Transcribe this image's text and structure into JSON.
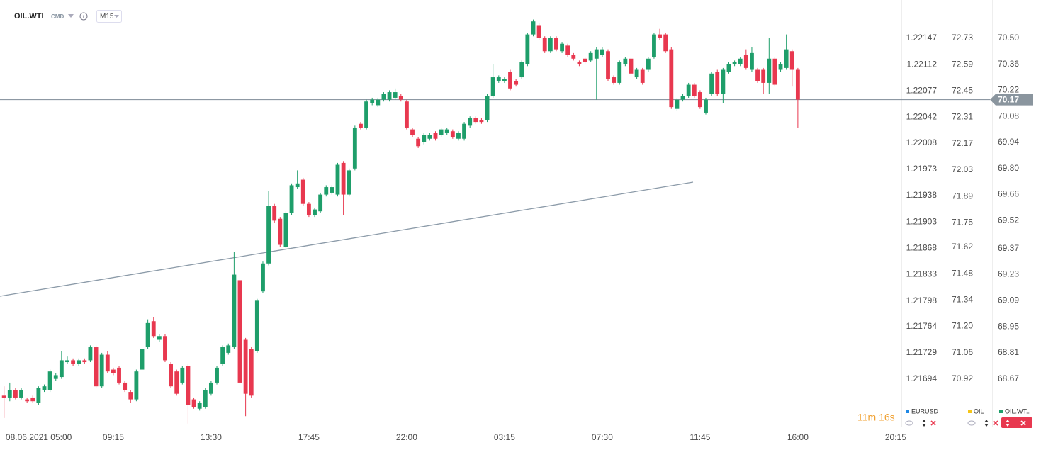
{
  "chart_data": {
    "type": "candlestick",
    "symbol": "OIL.WTI",
    "market": "CMD",
    "interval": "M15",
    "countdown": "11m 16s",
    "up_color": "#1e9e6a",
    "down_color": "#e8384f",
    "open": [
      68.58,
      68.57,
      68.61,
      68.57,
      68.56,
      68.57,
      68.54,
      68.61,
      68.61,
      68.67,
      68.68,
      68.76,
      68.77,
      68.75,
      68.77,
      68.77,
      68.84,
      68.63,
      68.8,
      68.72,
      68.73,
      68.65,
      68.6,
      68.56,
      68.72,
      68.84,
      68.98,
      68.88,
      68.9,
      68.75,
      68.71,
      68.65,
      68.74,
      68.56,
      68.51,
      68.52,
      68.59,
      68.65,
      68.75,
      68.81,
      68.84,
      69.2,
      68.88,
      68.83,
      68.82,
      69.14,
      69.29,
      69.6,
      69.53,
      69.38,
      69.56,
      69.7,
      69.74,
      69.61,
      69.55,
      69.57,
      69.66,
      69.67,
      69.66,
      69.83,
      69.66,
      69.8,
      70.04,
      70.02,
      70.15,
      70.14,
      70.17,
      70.17,
      70.18,
      70.19,
      70.16,
      70.01,
      69.96,
      69.94,
      69.96,
      69.99,
      69.98,
      69.99,
      70.0,
      69.96,
      69.96,
      70.03,
      70.07,
      70.06,
      70.06,
      70.19,
      70.27,
      70.27,
      70.32,
      70.27,
      70.29,
      70.36,
      70.52,
      70.57,
      70.5,
      70.43,
      70.5,
      70.43,
      70.46,
      70.41,
      70.37,
      70.39,
      70.38,
      70.39,
      70.41,
      70.43,
      70.29,
      70.26,
      70.36,
      70.39,
      70.29,
      70.33,
      70.33,
      70.4,
      70.52,
      70.52,
      70.44,
      70.12,
      70.17,
      70.19,
      70.25,
      70.21,
      70.1,
      70.2,
      70.32,
      70.2,
      70.32,
      70.36,
      70.36,
      70.41,
      70.33,
      70.33,
      70.33,
      70.26,
      70.39,
      70.33,
      70.34,
      70.43,
      70.33
    ],
    "high": [
      68.63,
      68.65,
      68.62,
      68.62,
      68.57,
      68.58,
      68.63,
      68.64,
      68.72,
      68.7,
      68.82,
      68.79,
      68.78,
      68.78,
      68.78,
      68.85,
      68.85,
      68.81,
      68.82,
      68.73,
      68.74,
      68.66,
      68.61,
      68.72,
      68.85,
      68.99,
      69.0,
      68.91,
      68.91,
      68.76,
      68.72,
      68.74,
      68.75,
      68.57,
      68.55,
      68.62,
      68.66,
      68.74,
      68.85,
      68.86,
      69.35,
      69.22,
      68.89,
      68.84,
      69.1,
      69.3,
      69.68,
      69.61,
      69.54,
      69.57,
      69.72,
      69.79,
      69.75,
      69.62,
      69.59,
      69.67,
      69.71,
      69.71,
      69.83,
      69.84,
      69.8,
      70.03,
      70.05,
      70.17,
      70.18,
      70.18,
      70.21,
      70.22,
      70.23,
      70.2,
      70.17,
      70.02,
      69.97,
      69.99,
      69.99,
      70.0,
      70.02,
      70.02,
      70.01,
      70.0,
      70.05,
      70.08,
      70.08,
      70.07,
      70.2,
      70.36,
      70.3,
      70.29,
      70.33,
      70.28,
      70.38,
      70.53,
      70.6,
      70.58,
      70.51,
      70.51,
      70.51,
      70.48,
      70.47,
      70.42,
      70.38,
      70.4,
      70.43,
      70.45,
      70.45,
      70.44,
      70.3,
      70.38,
      70.4,
      70.4,
      70.34,
      70.34,
      70.4,
      70.53,
      70.55,
      70.53,
      70.45,
      70.18,
      70.2,
      70.26,
      70.26,
      70.22,
      70.18,
      70.32,
      70.33,
      70.34,
      70.37,
      70.38,
      70.4,
      70.44,
      70.45,
      70.34,
      70.34,
      70.5,
      70.4,
      70.37,
      70.52,
      70.44,
      70.34
    ],
    "low": [
      68.46,
      68.55,
      68.56,
      68.56,
      68.54,
      68.54,
      68.53,
      68.6,
      68.6,
      68.66,
      68.67,
      68.75,
      68.74,
      68.74,
      68.75,
      68.76,
      68.62,
      68.62,
      68.7,
      68.69,
      68.64,
      68.6,
      68.54,
      68.55,
      68.71,
      68.83,
      68.89,
      68.87,
      68.76,
      68.62,
      68.58,
      68.64,
      68.43,
      68.51,
      68.5,
      68.51,
      68.58,
      68.64,
      68.74,
      68.8,
      68.83,
      68.64,
      68.47,
      68.57,
      68.81,
      69.13,
      69.28,
      69.51,
      69.38,
      69.37,
      69.55,
      69.69,
      69.6,
      69.54,
      69.54,
      69.56,
      69.65,
      69.66,
      69.65,
      69.55,
      69.65,
      69.79,
      70.01,
      70.01,
      70.14,
      70.13,
      70.16,
      70.16,
      70.17,
      70.16,
      70.01,
      69.97,
      69.91,
      69.93,
      69.95,
      69.95,
      69.97,
      69.98,
      69.96,
      69.95,
      69.95,
      70.02,
      70.04,
      70.04,
      70.05,
      70.18,
      70.26,
      70.26,
      70.22,
      70.24,
      70.28,
      70.35,
      70.51,
      70.49,
      70.42,
      70.42,
      70.43,
      70.42,
      70.4,
      70.38,
      70.35,
      70.36,
      70.37,
      70.17,
      70.4,
      70.27,
      70.25,
      70.25,
      70.35,
      70.3,
      70.28,
      70.25,
      70.32,
      70.39,
      70.49,
      70.42,
      70.12,
      70.11,
      70.16,
      70.18,
      70.18,
      70.12,
      70.09,
      70.19,
      70.19,
      70.15,
      70.31,
      70.35,
      70.35,
      70.33,
      70.32,
      70.26,
      70.2,
      70.2,
      70.24,
      70.32,
      70.33,
      70.24,
      70.02
    ],
    "close": [
      68.57,
      68.61,
      68.57,
      68.61,
      68.55,
      68.55,
      68.62,
      68.63,
      68.71,
      68.69,
      68.77,
      68.77,
      68.75,
      68.77,
      68.76,
      68.84,
      68.63,
      68.8,
      68.71,
      68.7,
      68.65,
      68.61,
      68.56,
      68.71,
      68.83,
      68.97,
      68.9,
      68.9,
      68.77,
      68.63,
      68.59,
      68.73,
      68.53,
      68.52,
      68.54,
      68.61,
      68.65,
      68.73,
      68.84,
      68.85,
      69.23,
      68.65,
      68.59,
      68.58,
      69.09,
      69.29,
      69.6,
      69.52,
      69.39,
      69.56,
      69.71,
      69.72,
      69.61,
      69.55,
      69.58,
      69.66,
      69.7,
      69.7,
      69.82,
      69.66,
      69.79,
      70.02,
      70.02,
      70.16,
      70.17,
      70.17,
      70.2,
      70.21,
      70.21,
      70.17,
      70.02,
      69.98,
      69.92,
      69.98,
      69.98,
      69.96,
      70.01,
      70.01,
      69.97,
      69.99,
      70.04,
      70.07,
      70.05,
      70.05,
      70.19,
      70.29,
      70.29,
      70.28,
      70.23,
      70.25,
      70.37,
      70.52,
      70.59,
      70.5,
      70.43,
      70.5,
      70.44,
      70.47,
      70.41,
      70.39,
      70.36,
      70.37,
      70.42,
      70.44,
      70.44,
      70.28,
      70.26,
      70.37,
      70.39,
      70.31,
      70.33,
      70.26,
      70.39,
      70.52,
      70.5,
      70.43,
      70.13,
      70.17,
      70.19,
      70.25,
      70.19,
      70.13,
      70.17,
      70.31,
      70.2,
      70.33,
      70.36,
      70.37,
      70.39,
      70.34,
      70.42,
      70.27,
      70.26,
      70.39,
      70.25,
      70.36,
      70.44,
      70.33,
      70.17
    ],
    "xlim": [
      -0.7,
      156
    ],
    "xticks": [
      {
        "value": 2,
        "label": "08.06.2021 05:00"
      },
      {
        "value": 19,
        "label": "09:15"
      },
      {
        "value": 36,
        "label": "13:30"
      },
      {
        "value": 53,
        "label": "17:45"
      },
      {
        "value": 70,
        "label": "22:00"
      },
      {
        "value": 87,
        "label": "03:15"
      },
      {
        "value": 104,
        "label": "07:30"
      },
      {
        "value": 121,
        "label": "11:45"
      },
      {
        "value": 138,
        "label": "16:00"
      },
      {
        "value": 155,
        "label": "20:15"
      }
    ],
    "ylim": [
      68.41,
      70.705
    ],
    "yticks": [
      {
        "value": 70.5,
        "label": "70.50"
      },
      70.36,
      70.22,
      70.08,
      69.94,
      {
        "value": 69.8,
        "label": "69.80"
      },
      69.66,
      69.52,
      69.37,
      69.23,
      69.09,
      68.95,
      68.81,
      68.67
    ],
    "y2lim": [
      1.2163,
      1.221979
    ],
    "y2ticks": [
      1.22147,
      1.22112,
      1.22077,
      1.22042,
      1.22008,
      1.21973,
      1.21938,
      1.21903,
      1.21868,
      1.21833,
      1.21798,
      1.21764,
      1.21729,
      1.21694
    ],
    "y3lim": [
      70.664,
      72.933
    ],
    "y3ticks": [
      72.73,
      72.59,
      72.45,
      72.31,
      72.17,
      72.03,
      71.89,
      71.75,
      71.62,
      71.48,
      71.34,
      {
        "value": 71.2,
        "label": "71.20"
      },
      71.06,
      70.92
    ],
    "last_price": 70.17,
    "legend": [
      {
        "name": "EURUSD",
        "color": "#1e88e5"
      },
      {
        "name": "OIL",
        "color": "#f5c518"
      },
      {
        "name": "OIL.WT..",
        "color": "#1e9e6a"
      }
    ]
  }
}
